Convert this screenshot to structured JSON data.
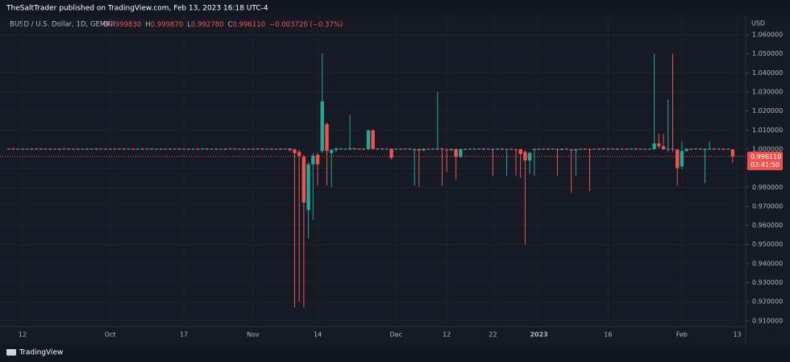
{
  "header": {
    "published": "TheSaltTrader published on TradingView.com, Feb 13, 2023 16:18 UTC-4",
    "symbol": "BUSD / U.S. Dollar, 1D, GEMINI",
    "ohlc_legend": [
      {
        "label": "O",
        "value": "0.999830"
      },
      {
        "label": "H",
        "value": "0.999870"
      },
      {
        "label": "L",
        "value": "0.992780"
      },
      {
        "label": "C",
        "value": "0.996110"
      }
    ],
    "change": "−0.003720 (−0.37%)"
  },
  "footer": {
    "brand": "TradingView"
  },
  "chart_data": {
    "type": "candlestick",
    "currency": "USD",
    "up_color": "#26a69a",
    "down_color": "#ef5350",
    "last_price": {
      "value": 0.99611,
      "label": "0.996110"
    },
    "countdown": "03:41:50",
    "ylim": [
      0.907,
      1.0697
    ],
    "yticks": [
      {
        "value": 0.91,
        "label": "0.910000"
      },
      {
        "value": 0.92,
        "label": "0.920000"
      },
      {
        "value": 0.93,
        "label": "0.930000"
      },
      {
        "value": 0.94,
        "label": "0.940000"
      },
      {
        "value": 0.95,
        "label": "0.950000"
      },
      {
        "value": 0.96,
        "label": "0.960000"
      },
      {
        "value": 0.97,
        "label": "0.970000"
      },
      {
        "value": 0.98,
        "label": "0.980000"
      },
      {
        "value": 0.99,
        "label": "0.990000"
      },
      {
        "value": 1.0,
        "label": "1.000000"
      },
      {
        "value": 1.01,
        "label": "1.010000"
      },
      {
        "value": 1.02,
        "label": "1.020000"
      },
      {
        "value": 1.03,
        "label": "1.030000"
      },
      {
        "value": 1.04,
        "label": "1.040000"
      },
      {
        "value": 1.05,
        "label": "1.050000"
      },
      {
        "value": 1.06,
        "label": "1.060000"
      }
    ],
    "grid": true,
    "categories": [
      null,
      null,
      null,
      "12",
      null,
      null,
      null,
      null,
      null,
      null,
      null,
      null,
      null,
      null,
      null,
      null,
      null,
      null,
      null,
      null,
      null,
      null,
      "Oct",
      null,
      null,
      null,
      null,
      null,
      null,
      null,
      null,
      null,
      null,
      null,
      null,
      null,
      null,
      null,
      "17",
      null,
      null,
      null,
      null,
      null,
      null,
      null,
      null,
      null,
      null,
      null,
      null,
      null,
      null,
      "Nov",
      null,
      null,
      null,
      null,
      null,
      null,
      null,
      null,
      null,
      null,
      null,
      null,
      null,
      "14",
      null,
      null,
      null,
      null,
      null,
      null,
      null,
      null,
      null,
      null,
      null,
      null,
      null,
      null,
      null,
      null,
      "Dec",
      null,
      null,
      null,
      null,
      null,
      null,
      null,
      null,
      null,
      null,
      "12",
      null,
      null,
      null,
      null,
      null,
      null,
      null,
      null,
      null,
      "22",
      null,
      null,
      null,
      null,
      null,
      null,
      null,
      null,
      null,
      "2023",
      null,
      null,
      null,
      null,
      null,
      null,
      null,
      null,
      null,
      null,
      null,
      null,
      null,
      null,
      "16",
      null,
      null,
      null,
      null,
      null,
      null,
      null,
      null,
      null,
      null,
      null,
      null,
      null,
      null,
      null,
      "Feb",
      null,
      null,
      null,
      null,
      null,
      null,
      null,
      null,
      null,
      null,
      null,
      "13"
    ],
    "ohlc": [
      [
        1,
        1.0004,
        0.9996,
        1.0003
      ],
      [
        1.0003,
        1.0005,
        0.9995,
        1
      ],
      [
        1,
        1.0004,
        0.9996,
        1.0002
      ],
      [
        1.0002,
        1.0005,
        0.9995,
        0.9999
      ],
      [
        0.9999,
        1.0004,
        0.9996,
        1.0002
      ],
      [
        1.0002,
        1.0005,
        0.9995,
        1
      ],
      [
        1,
        1.0004,
        0.9996,
        1.0003
      ],
      [
        1.0003,
        1.0005,
        0.9995,
        1
      ],
      [
        1,
        1.0004,
        0.9996,
        1.0002
      ],
      [
        1.0002,
        1.0005,
        0.9995,
        0.9999
      ],
      [
        0.9999,
        1.0004,
        0.9996,
        1.0002
      ],
      [
        1.0002,
        1.0005,
        0.9995,
        1
      ],
      [
        1,
        1.0004,
        0.9996,
        1.0003
      ],
      [
        1.0003,
        1.0005,
        0.9995,
        1
      ],
      [
        1,
        1.0004,
        0.9996,
        1.0002
      ],
      [
        1.0002,
        1.0005,
        0.9995,
        0.9999
      ],
      [
        0.9999,
        1.0004,
        0.9996,
        1.0002
      ],
      [
        1.0002,
        1.0005,
        0.9995,
        1
      ],
      [
        1,
        1.0004,
        0.9996,
        1.0003
      ],
      [
        1.0003,
        1.0005,
        0.9995,
        1
      ],
      [
        1,
        1.0004,
        0.9996,
        1.0002
      ],
      [
        1.0002,
        1.0005,
        0.9995,
        0.9999
      ],
      [
        0.9999,
        1.0004,
        0.9996,
        1.0002
      ],
      [
        1.0002,
        1.0005,
        0.9995,
        1
      ],
      [
        1,
        1.0004,
        0.9996,
        1.0003
      ],
      [
        1.0003,
        1.0005,
        0.9995,
        1
      ],
      [
        1,
        1.0004,
        0.9996,
        1.0002
      ],
      [
        1.0002,
        1.0005,
        0.9995,
        0.9999
      ],
      [
        0.9999,
        1.0004,
        0.9996,
        1.0002
      ],
      [
        1.0002,
        1.0005,
        0.9995,
        1
      ],
      [
        1,
        1.0004,
        0.9996,
        1.0003
      ],
      [
        1.0003,
        1.0005,
        0.9995,
        1
      ],
      [
        1,
        1.0004,
        0.9996,
        1.0002
      ],
      [
        1.0002,
        1.0005,
        0.9995,
        0.9999
      ],
      [
        0.9999,
        1.0004,
        0.9996,
        1.0002
      ],
      [
        1.0002,
        1.0005,
        0.9995,
        1
      ],
      [
        1,
        1.0004,
        0.9996,
        1.0003
      ],
      [
        1.0003,
        1.0005,
        0.9995,
        1
      ],
      [
        1,
        1.0004,
        0.9996,
        1.0002
      ],
      [
        1.0002,
        1.0005,
        0.9995,
        0.9999
      ],
      [
        0.9999,
        1.0004,
        0.9996,
        1.0002
      ],
      [
        1.0002,
        1.0005,
        0.9995,
        1
      ],
      [
        1,
        1.0004,
        0.9996,
        1.0003
      ],
      [
        1.0003,
        1.0005,
        0.9995,
        1
      ],
      [
        1,
        1.0004,
        0.9996,
        1.0002
      ],
      [
        1.0002,
        1.0005,
        0.9995,
        0.9999
      ],
      [
        0.9999,
        1.0004,
        0.9996,
        1.0002
      ],
      [
        1.0002,
        1.0005,
        0.9995,
        1
      ],
      [
        1,
        1.0004,
        0.9996,
        1.0003
      ],
      [
        1.0003,
        1.0005,
        0.9995,
        1
      ],
      [
        1,
        1.0004,
        0.9996,
        1.0002
      ],
      [
        1.0002,
        1.0005,
        0.9995,
        0.9999
      ],
      [
        0.9999,
        1.0004,
        0.9996,
        1.0002
      ],
      [
        1.0002,
        1.0005,
        0.9995,
        1
      ],
      [
        1,
        1.0004,
        0.9996,
        1.0003
      ],
      [
        1.0003,
        1.0005,
        0.9995,
        1
      ],
      [
        1,
        1.0004,
        0.9996,
        1.0002
      ],
      [
        1.0002,
        1.0005,
        0.9995,
        0.9999
      ],
      [
        0.9999,
        1.0004,
        0.9996,
        1.0002
      ],
      [
        1.0002,
        1.0005,
        0.9995,
        1
      ],
      [
        1,
        1.0004,
        0.9996,
        1.0003
      ],
      [
        1.0003,
        1.0005,
        0.9985,
        0.9995
      ],
      [
        0.9998,
        1.0003,
        0.917,
        0.9978
      ],
      [
        0.9985,
        0.9995,
        0.92,
        0.9965
      ],
      [
        0.996,
        0.997,
        0.917,
        0.972
      ],
      [
        0.968,
        0.993,
        0.953,
        0.992
      ],
      [
        0.992,
        0.998,
        0.963,
        0.9965
      ],
      [
        0.997,
        0.998,
        0.981,
        0.992
      ],
      [
        0.999,
        1.05,
        0.998,
        1.025
      ],
      [
        1.013,
        1.014,
        0.981,
        0.999
      ],
      [
        0.998,
        1.0002,
        0.98,
        0.9995
      ],
      [
        0.9995,
        1.0008,
        0.9985,
        1.0003
      ],
      [
        1.0003,
        1.0006,
        0.9995,
        1
      ],
      [
        1,
        1.0004,
        0.9996,
        1.0002
      ],
      [
        0.9998,
        1.018,
        0.9995,
        1.0004
      ],
      [
        1.0004,
        1.0006,
        0.9995,
        1
      ],
      [
        1,
        1.0004,
        0.9996,
        1.0002
      ],
      [
        1.0002,
        1.0005,
        0.9995,
        0.9999
      ],
      [
        1,
        1.01,
        0.9995,
        1.0098
      ],
      [
        1.0098,
        1.0102,
        0.9995,
        1.0001
      ],
      [
        1.0001,
        1.0004,
        0.9996,
        1.0003
      ],
      [
        1.0003,
        1.0005,
        0.9995,
        1
      ],
      [
        1,
        1.0004,
        0.9996,
        1.0002
      ],
      [
        1.0002,
        1.0005,
        0.9945,
        0.9955
      ],
      [
        0.9999,
        1.0004,
        0.9996,
        1.0002
      ],
      [
        1.0002,
        1.0005,
        0.9995,
        1
      ],
      [
        1,
        1.0004,
        0.9996,
        1.0003
      ],
      [
        1.0003,
        1.0005,
        0.9995,
        1
      ],
      [
        0.9995,
        1.0003,
        0.981,
        1
      ],
      [
        1,
        1.0004,
        0.98,
        0.9993
      ],
      [
        0.9993,
        1.0004,
        0.999,
        1.0002
      ],
      [
        1.0002,
        1.0005,
        0.9995,
        0.9999
      ],
      [
        0.9999,
        1.0004,
        0.9996,
        1.0002
      ],
      [
        0.9998,
        1.03,
        0.9995,
        1.0003
      ],
      [
        1.0003,
        1.0006,
        0.981,
        0.9998
      ],
      [
        0.9998,
        1.0003,
        0.988,
        0.9995
      ],
      [
        0.9995,
        1.0004,
        0.999,
        1.0001
      ],
      [
        1,
        1.0003,
        0.984,
        0.996
      ],
      [
        0.996,
        1.0004,
        0.9955,
        1
      ],
      [
        1,
        1.0005,
        0.9995,
        0.9999
      ],
      [
        0.9999,
        1.0004,
        0.9996,
        1.0002
      ],
      [
        1.0002,
        1.0005,
        0.9995,
        1
      ],
      [
        1,
        1.0004,
        0.9996,
        1.0003
      ],
      [
        1.0003,
        1.0005,
        0.9995,
        1
      ],
      [
        1,
        1.0004,
        0.9996,
        1.0002
      ],
      [
        1,
        1.0003,
        0.986,
        0.9997
      ],
      [
        0.9997,
        1.0004,
        0.9996,
        1.0002
      ],
      [
        1.0002,
        1.0005,
        0.9995,
        1
      ],
      [
        0.9997,
        1.0004,
        0.986,
        1.0001
      ],
      [
        1.0001,
        1.0005,
        0.9995,
        0.9999
      ],
      [
        0.9998,
        1.0003,
        0.986,
        0.9995
      ],
      [
        0.9999,
        1.0002,
        0.985,
        0.9975
      ],
      [
        0.9985,
        0.9995,
        0.95,
        0.994
      ],
      [
        0.994,
        0.9985,
        0.987,
        0.998
      ],
      [
        0.9995,
        1.0003,
        0.986,
        1.0001
      ],
      [
        1.0001,
        1.0005,
        0.9995,
        0.9999
      ],
      [
        0.9999,
        1.0004,
        0.9996,
        1.0002
      ],
      [
        1.0002,
        1.0005,
        0.9995,
        1
      ],
      [
        1,
        1.0004,
        0.9996,
        1.0003
      ],
      [
        1,
        1.0004,
        0.986,
        0.9996
      ],
      [
        0.9996,
        1.0004,
        0.9994,
        1.0002
      ],
      [
        1.0002,
        1.0005,
        0.9995,
        1
      ],
      [
        0.9998,
        1.0003,
        0.977,
        0.9993
      ],
      [
        0.9993,
        1.0003,
        0.986,
        1
      ],
      [
        1,
        1.0004,
        0.9996,
        1.0002
      ],
      [
        1.0002,
        1.0005,
        0.9995,
        0.9999
      ],
      [
        1,
        1.0004,
        0.978,
        0.9998
      ],
      [
        0.9998,
        1.0004,
        0.9996,
        1.0002
      ],
      [
        1.0002,
        1.0005,
        0.9995,
        1
      ],
      [
        1,
        1.0004,
        0.9996,
        1.0003
      ],
      [
        1.0003,
        1.0005,
        0.9995,
        1
      ],
      [
        1,
        1.0004,
        0.9996,
        1.0002
      ],
      [
        1.0002,
        1.0005,
        0.9995,
        0.9999
      ],
      [
        0.9999,
        1.0004,
        0.9996,
        1.0002
      ],
      [
        1.0002,
        1.0005,
        0.9995,
        1
      ],
      [
        1,
        1.0004,
        0.9996,
        1.0003
      ],
      [
        1.0003,
        1.0005,
        0.9995,
        1
      ],
      [
        1,
        1.0004,
        0.9996,
        1.0002
      ],
      [
        1.0002,
        1.0005,
        0.9995,
        0.9999
      ],
      [
        0.9999,
        1.0004,
        0.9996,
        1.0002
      ],
      [
        1,
        1.05,
        0.9995,
        1.003
      ],
      [
        1.003,
        1.008,
        1.0005,
        1.0015
      ],
      [
        1.0015,
        1.008,
        0.9995,
        1
      ],
      [
        1,
        1.026,
        0.9985,
        1.0002
      ],
      [
        1.0002,
        1.05,
        0.9985,
        0.9998
      ],
      [
        0.9998,
        1,
        0.981,
        0.99
      ],
      [
        0.991,
        1.004,
        0.9895,
        0.999
      ],
      [
        0.999,
        1.0004,
        0.9985,
        1.0002
      ],
      [
        1.0002,
        1.0005,
        0.9995,
        1
      ],
      [
        1,
        1.0004,
        0.9996,
        1.0003
      ],
      [
        1.0003,
        1.0005,
        0.9995,
        1
      ],
      [
        0.9995,
        1.0005,
        0.982,
        1.0001
      ],
      [
        1.0001,
        1.004,
        0.9995,
        1.0003
      ],
      [
        1.0003,
        1.0005,
        0.9995,
        1
      ],
      [
        1,
        1.0004,
        0.9996,
        1.0002
      ],
      [
        1.0002,
        1.0005,
        0.9995,
        0.9999
      ],
      [
        0.9999,
        1.0004,
        0.9996,
        1.0002
      ],
      [
        0.99983,
        0.99987,
        0.99278,
        0.99611
      ]
    ]
  }
}
